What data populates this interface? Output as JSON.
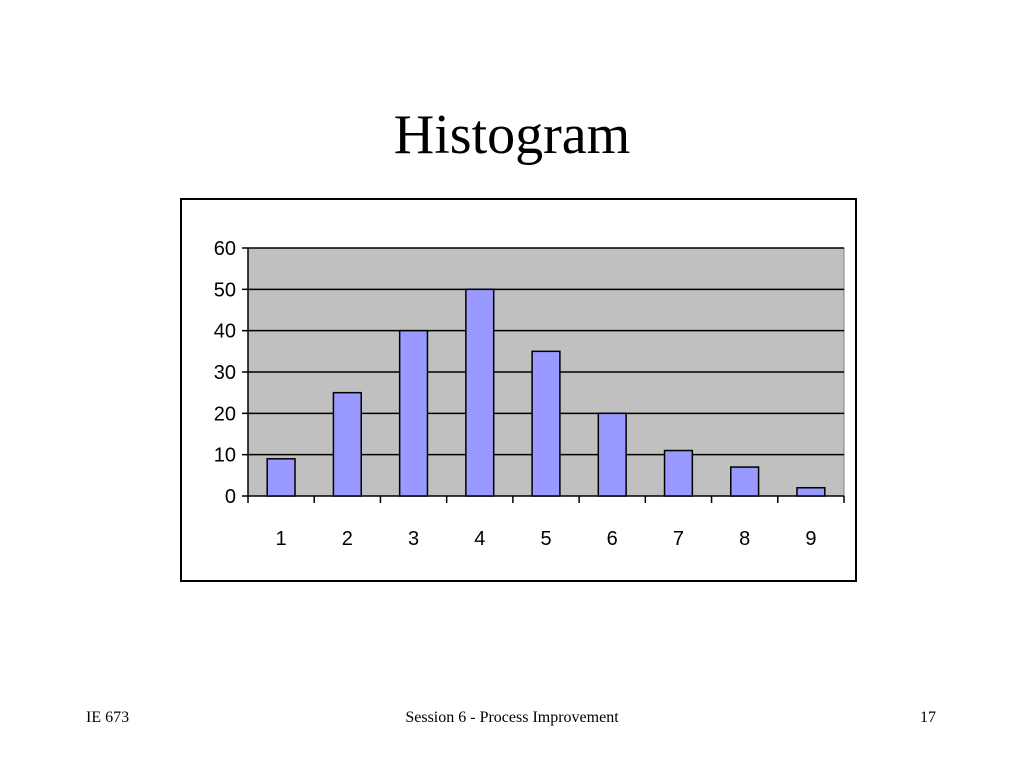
{
  "slide": {
    "title": "Histogram",
    "footer_left": "IE 673",
    "footer_center": "Session 6 - Process Improvement",
    "footer_right": "17"
  },
  "chart_data": {
    "type": "bar",
    "categories": [
      "1",
      "2",
      "3",
      "4",
      "5",
      "6",
      "7",
      "8",
      "9"
    ],
    "values": [
      9,
      25,
      40,
      50,
      35,
      20,
      11,
      7,
      2
    ],
    "title": "",
    "xlabel": "",
    "ylabel": "",
    "ylim": [
      0,
      60
    ],
    "yticks": [
      0,
      10,
      20,
      30,
      40,
      50,
      60
    ],
    "grid": true,
    "legend": "none",
    "colors": {
      "bar_fill": "#9999ff",
      "bar_stroke": "#000000",
      "plot_background": "#c0c0c0",
      "gridline": "#000000"
    }
  }
}
